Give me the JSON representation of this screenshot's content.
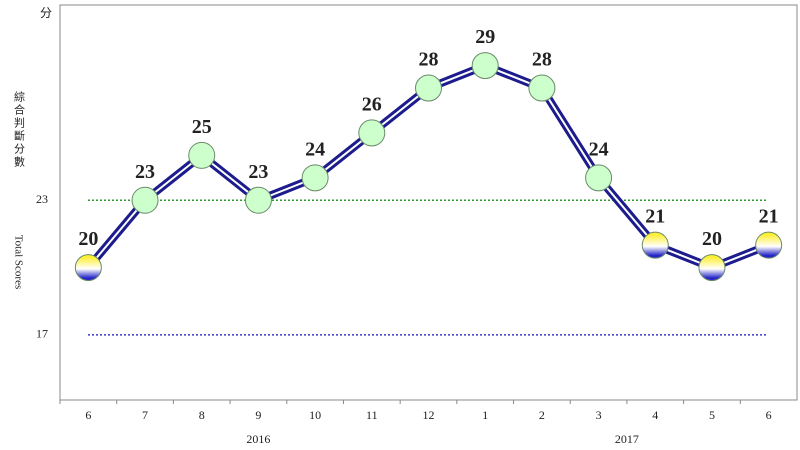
{
  "chart_data": {
    "type": "line",
    "y_unit": "分",
    "y_label": "綜合判斷分數",
    "y_label_en": "Total Scores",
    "categories": [
      "6",
      "7",
      "8",
      "9",
      "10",
      "11",
      "12",
      "1",
      "2",
      "3",
      "4",
      "5",
      "6"
    ],
    "x_groups": [
      {
        "label": "2016",
        "start": 0,
        "end": 6
      },
      {
        "label": "2017",
        "start": 7,
        "end": 12
      }
    ],
    "values": [
      20,
      23,
      25,
      23,
      24,
      26,
      28,
      29,
      28,
      24,
      21,
      20,
      21
    ],
    "color": "#1c1c8e",
    "marker_fills": [
      [
        "#ffee33",
        "#2424c8"
      ],
      "#ccffcc",
      "#ccffcc",
      "#ccffcc",
      "#ccffcc",
      "#ccffcc",
      "#ccffcc",
      "#ccffcc",
      "#ccffcc",
      "#ccffcc",
      [
        "#ffee33",
        "#2424c8"
      ],
      [
        "#ffee33",
        "#2424c8"
      ],
      [
        "#ffee33",
        "#2424c8"
      ]
    ],
    "ylim": [
      14.1,
      31.7
    ],
    "yticks": [
      17,
      23
    ],
    "reference_lines": [
      {
        "value": 23,
        "color": "#2e9a2e"
      },
      {
        "value": 17,
        "color": "#3a3acc"
      }
    ]
  }
}
